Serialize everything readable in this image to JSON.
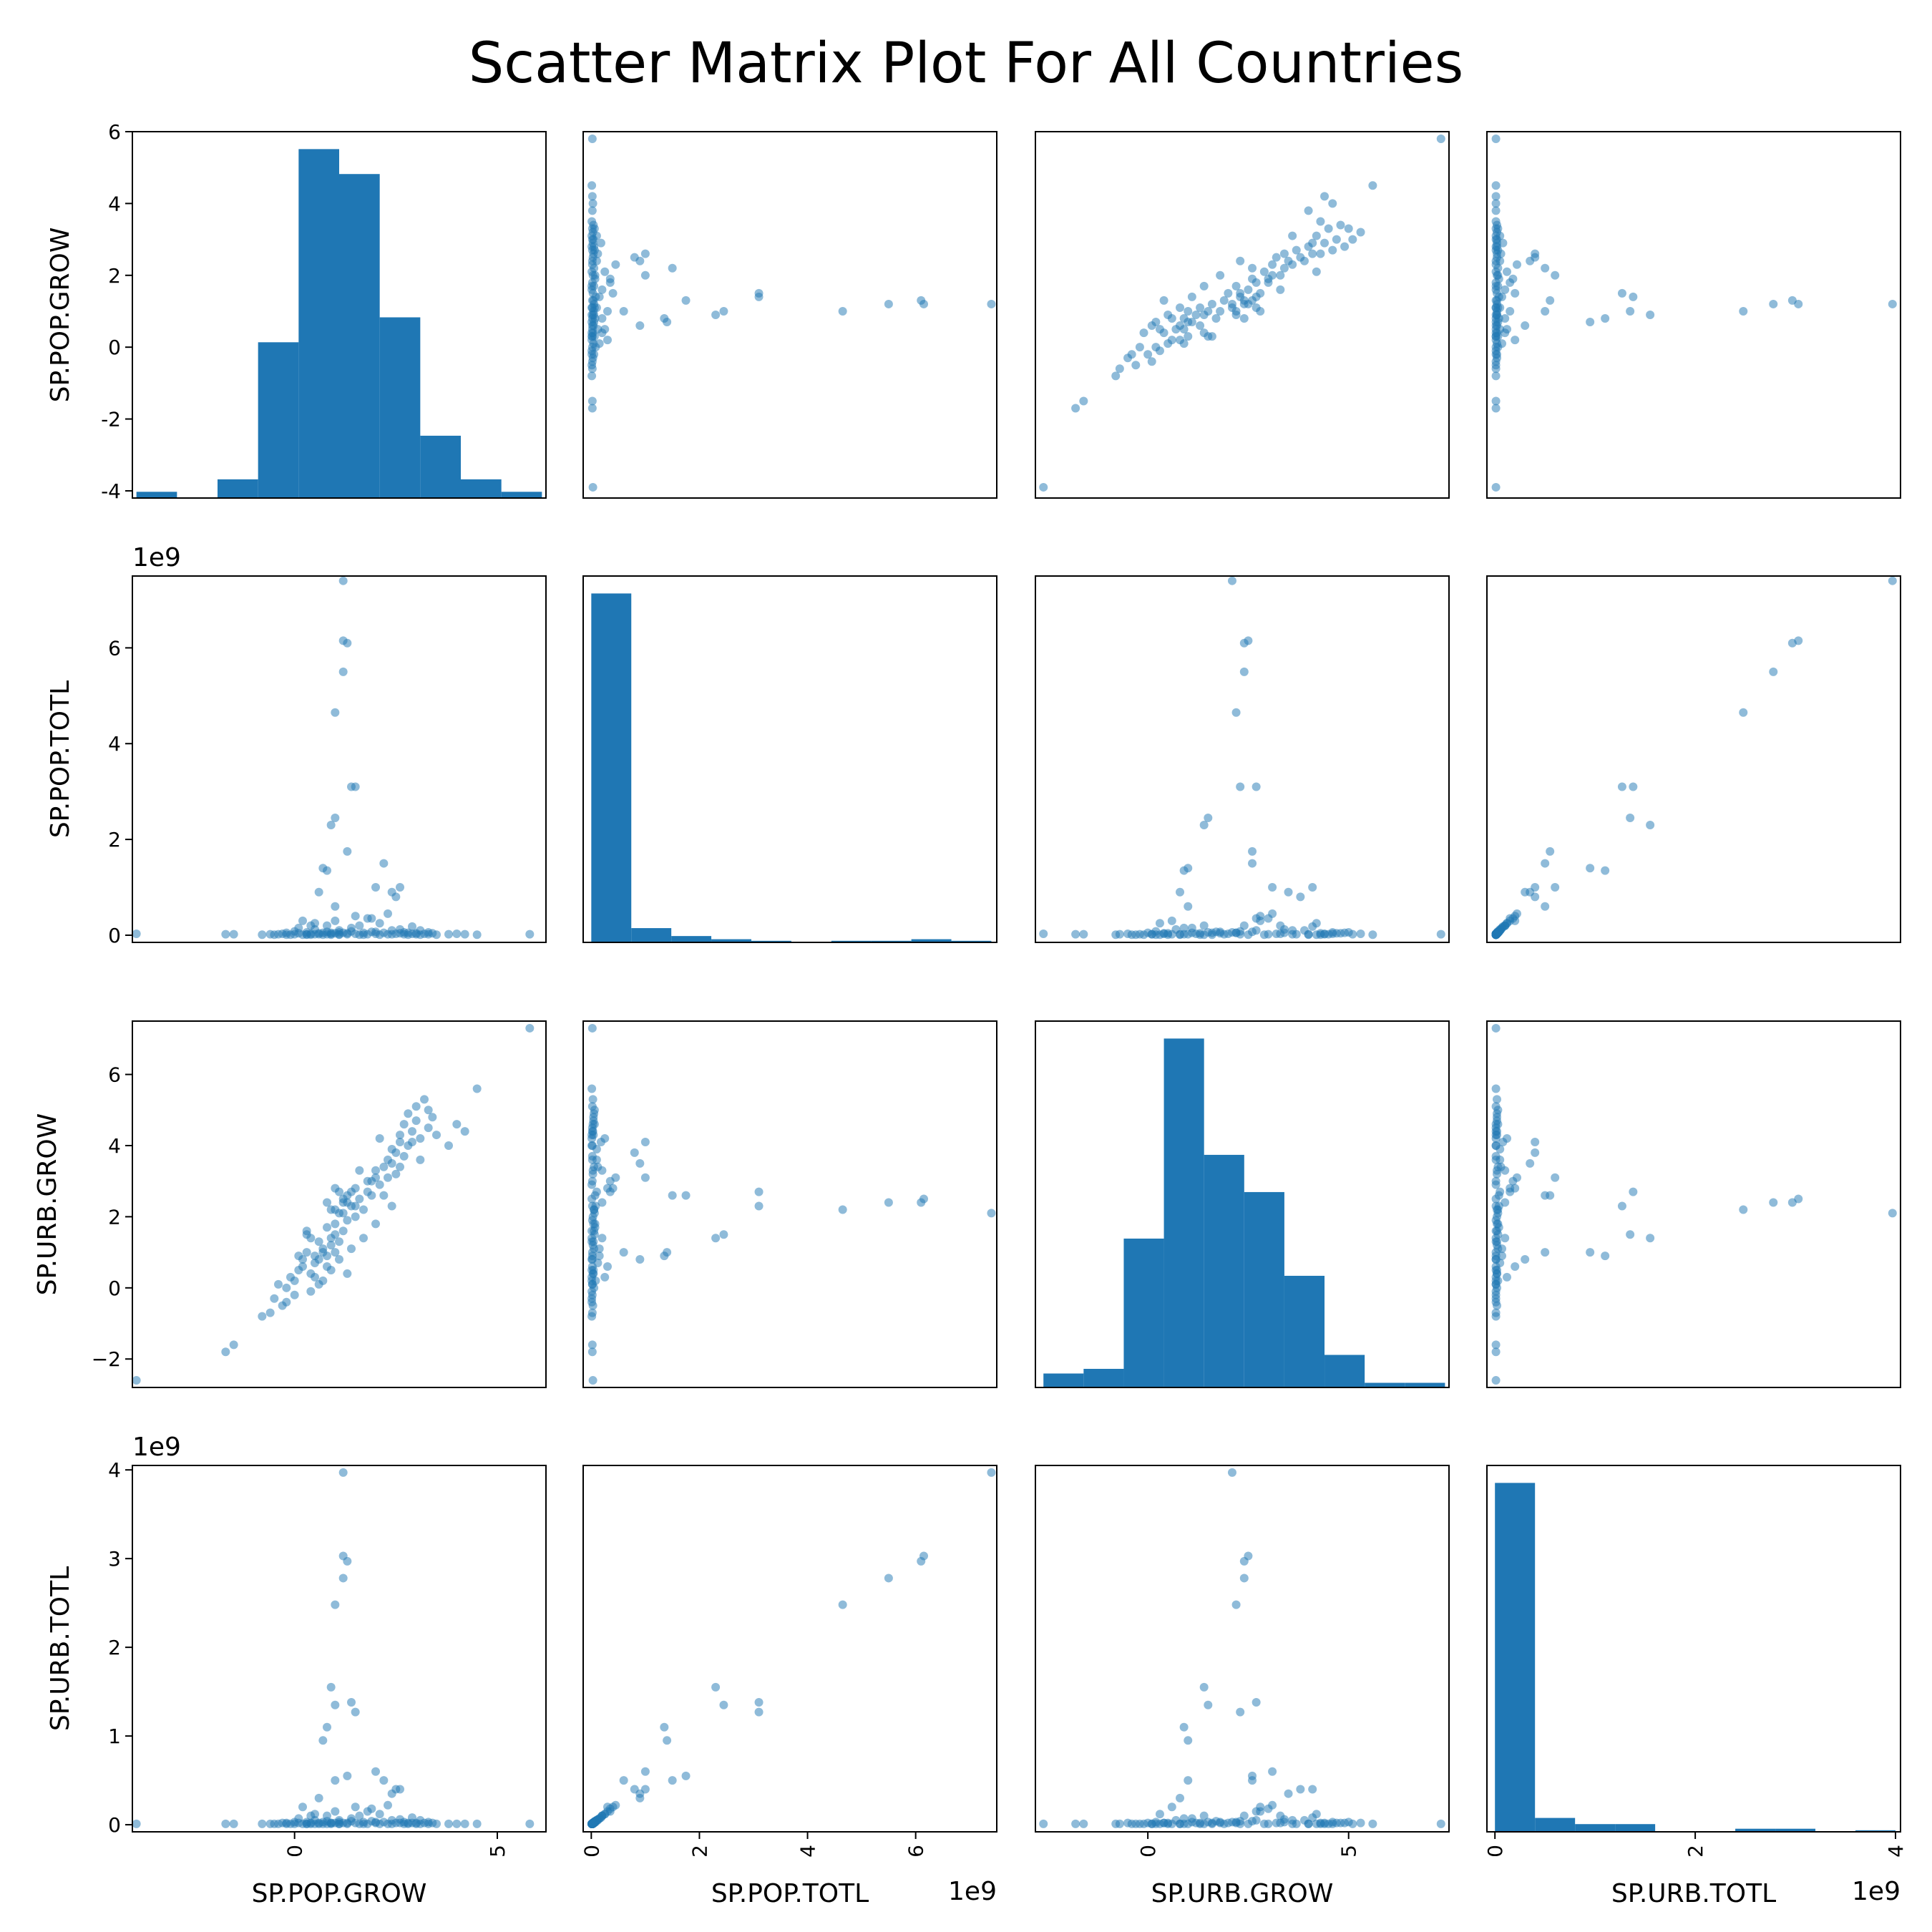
{
  "title": "Scatter Matrix Plot For All Countries",
  "colors": {
    "marker": "#1f77b4",
    "axes": "#000000",
    "background": "#ffffff"
  },
  "chart_data": {
    "type": "scatter",
    "variables": [
      "SP.POP.GROW",
      "SP.POP.TOTL",
      "SP.URB.GROW",
      "SP.URB.TOTL"
    ],
    "axes": [
      {
        "name": "SP.POP.GROW",
        "lim": [
          -4.2,
          6.0
        ],
        "row_ticks": [
          6,
          4,
          2,
          0,
          -2,
          -4
        ],
        "row_tick_labels": [
          "6",
          "4",
          "2",
          "0",
          "-2",
          "-4"
        ],
        "col_ticks": [
          0,
          5
        ],
        "col_tick_labels": [
          "0",
          "5"
        ],
        "col_lim": [
          -4.0,
          6.2
        ],
        "offset_text": ""
      },
      {
        "name": "SP.POP.TOTL",
        "lim": [
          -0.15,
          7.5
        ],
        "row_ticks": [
          6,
          4,
          2,
          0
        ],
        "row_tick_labels": [
          "6",
          "4",
          "2",
          "0"
        ],
        "col_ticks": [
          0,
          2,
          4,
          6
        ],
        "col_tick_labels": [
          "0",
          "2",
          "4",
          "6"
        ],
        "col_lim": [
          -0.15,
          7.5
        ],
        "offset_text": "1e9"
      },
      {
        "name": "SP.URB.GROW",
        "lim": [
          -2.8,
          7.5
        ],
        "row_ticks": [
          6,
          4,
          2,
          0,
          -2
        ],
        "row_tick_labels": [
          "6",
          "4",
          "2",
          "0",
          "−2"
        ],
        "col_ticks": [
          0,
          5
        ],
        "col_tick_labels": [
          "0",
          "5"
        ],
        "col_lim": [
          -2.8,
          7.5
        ],
        "offset_text": ""
      },
      {
        "name": "SP.URB.TOTL",
        "lim": [
          -0.08,
          4.05
        ],
        "row_ticks": [
          4,
          3,
          2,
          1,
          0
        ],
        "row_tick_labels": [
          "4",
          "3",
          "2",
          "1",
          "0"
        ],
        "col_ticks": [
          0,
          2,
          4
        ],
        "col_tick_labels": [
          "0",
          "2",
          "4"
        ],
        "col_lim": [
          -0.08,
          4.05
        ],
        "offset_text": "1e9"
      }
    ],
    "histograms": [
      {
        "variable": "SP.POP.GROW",
        "edges": [
          -3.9,
          -2.9,
          -1.9,
          -0.9,
          0.1,
          1.1,
          2.1,
          3.1,
          4.1,
          5.1,
          6.1
        ],
        "counts": [
          1,
          0,
          3,
          25,
          56,
          52,
          29,
          10,
          3,
          1
        ]
      },
      {
        "variable": "SP.POP.TOTL",
        "edges": [
          0.0,
          0.74,
          1.48,
          2.22,
          2.96,
          3.7,
          4.44,
          5.18,
          5.92,
          6.66,
          7.4
        ],
        "counts": [
          220,
          9,
          4,
          2,
          1,
          0,
          1,
          1,
          2,
          1
        ]
      },
      {
        "variable": "SP.URB.GROW",
        "edges": [
          -2.6,
          -1.6,
          -0.6,
          0.4,
          1.4,
          2.4,
          3.4,
          4.4,
          5.4,
          6.4,
          7.4
        ],
        "counts": [
          3,
          4,
          32,
          75,
          50,
          42,
          24,
          7,
          1,
          1
        ]
      },
      {
        "variable": "SP.URB.TOTL",
        "edges": [
          0.0,
          0.4,
          0.8,
          1.2,
          1.6,
          2.0,
          2.4,
          2.8,
          3.2,
          3.6,
          4.0
        ],
        "counts": [
          226,
          9,
          5,
          5,
          0,
          0,
          2,
          2,
          0,
          1
        ]
      }
    ],
    "points": [
      [
        -3.9,
        0.03,
        -2.6,
        0.01
      ],
      [
        -1.7,
        0.02,
        -1.8,
        0.01
      ],
      [
        -1.5,
        0.02,
        -1.6,
        0.01
      ],
      [
        -0.8,
        0.01,
        -0.8,
        0.01
      ],
      [
        -0.6,
        0.02,
        -0.7,
        0.01
      ],
      [
        -0.5,
        0.01,
        -0.3,
        0.01
      ],
      [
        -0.3,
        0.03,
        -0.5,
        0.02
      ],
      [
        -0.2,
        0.05,
        0.0,
        0.02
      ],
      [
        -0.1,
        0.01,
        0.3,
        0.01
      ],
      [
        0.0,
        0.02,
        -0.2,
        0.01
      ],
      [
        0.0,
        0.08,
        0.2,
        0.03
      ],
      [
        0.1,
        0.04,
        0.5,
        0.02
      ],
      [
        0.2,
        0.01,
        0.8,
        0.01
      ],
      [
        0.2,
        0.3,
        0.6,
        0.2
      ],
      [
        0.3,
        0.02,
        1.0,
        0.01
      ],
      [
        0.3,
        0.06,
        1.5,
        0.03
      ],
      [
        0.4,
        0.01,
        -0.1,
        0.01
      ],
      [
        0.4,
        0.03,
        0.4,
        0.02
      ],
      [
        0.5,
        0.02,
        0.9,
        0.01
      ],
      [
        0.5,
        0.12,
        0.7,
        0.05
      ],
      [
        0.6,
        0.04,
        1.3,
        0.02
      ],
      [
        0.6,
        0.9,
        0.8,
        0.3
      ],
      [
        0.7,
        0.01,
        0.2,
        0.01
      ],
      [
        0.7,
        0.05,
        1.1,
        0.03
      ],
      [
        0.7,
        1.4,
        1.0,
        0.95
      ],
      [
        0.8,
        0.02,
        0.6,
        0.01
      ],
      [
        0.8,
        0.07,
        1.7,
        0.04
      ],
      [
        0.8,
        1.35,
        0.9,
        1.1
      ],
      [
        0.9,
        0.03,
        1.2,
        0.02
      ],
      [
        0.9,
        0.01,
        0.5,
        0.01
      ],
      [
        0.9,
        2.3,
        1.4,
        1.55
      ],
      [
        1.0,
        0.04,
        1.8,
        0.02
      ],
      [
        1.0,
        2.45,
        1.5,
        1.35
      ],
      [
        1.0,
        0.6,
        1.0,
        0.5
      ],
      [
        1.0,
        4.65,
        2.2,
        2.48
      ],
      [
        1.1,
        0.02,
        0.8,
        0.01
      ],
      [
        1.1,
        0.06,
        2.1,
        0.03
      ],
      [
        1.1,
        0.01,
        1.3,
        0.01
      ],
      [
        1.2,
        5.5,
        2.4,
        2.78
      ],
      [
        1.2,
        6.15,
        2.5,
        3.03
      ],
      [
        1.2,
        7.4,
        2.1,
        3.97
      ],
      [
        1.2,
        0.05,
        1.6,
        0.02
      ],
      [
        1.3,
        6.1,
        2.4,
        2.97
      ],
      [
        1.3,
        1.75,
        2.6,
        0.55
      ],
      [
        1.3,
        0.02,
        1.9,
        0.01
      ],
      [
        1.4,
        3.1,
        2.7,
        1.38
      ],
      [
        1.4,
        0.08,
        2.3,
        0.04
      ],
      [
        1.5,
        3.1,
        2.3,
        1.27
      ],
      [
        1.5,
        0.03,
        2.0,
        0.02
      ],
      [
        1.5,
        0.4,
        2.8,
        0.2
      ],
      [
        1.6,
        0.01,
        2.5,
        0.01
      ],
      [
        1.7,
        0.05,
        2.2,
        0.03
      ],
      [
        1.8,
        0.02,
        3.0,
        0.01
      ],
      [
        1.8,
        0.35,
        2.7,
        0.15
      ],
      [
        1.9,
        0.07,
        2.6,
        0.04
      ],
      [
        2.0,
        0.03,
        3.3,
        0.02
      ],
      [
        2.0,
        1.0,
        3.1,
        0.6
      ],
      [
        2.1,
        0.01,
        2.9,
        0.01
      ],
      [
        2.2,
        1.5,
        2.6,
        0.5
      ],
      [
        2.2,
        0.05,
        3.4,
        0.03
      ],
      [
        2.3,
        0.02,
        3.6,
        0.01
      ],
      [
        2.4,
        0.9,
        3.5,
        0.35
      ],
      [
        2.4,
        0.1,
        3.9,
        0.05
      ],
      [
        2.5,
        0.03,
        3.2,
        0.02
      ],
      [
        2.5,
        0.8,
        3.8,
        0.4
      ],
      [
        2.6,
        1.0,
        4.1,
        0.4
      ],
      [
        2.6,
        0.04,
        4.3,
        0.02
      ],
      [
        2.7,
        0.02,
        3.7,
        0.01
      ],
      [
        2.7,
        0.06,
        4.6,
        0.03
      ],
      [
        2.8,
        0.01,
        4.0,
        0.01
      ],
      [
        2.8,
        0.05,
        4.9,
        0.02
      ],
      [
        2.9,
        0.03,
        4.4,
        0.02
      ],
      [
        3.0,
        0.02,
        5.1,
        0.01
      ],
      [
        3.0,
        0.04,
        4.7,
        0.02
      ],
      [
        3.1,
        0.01,
        4.2,
        0.01
      ],
      [
        3.2,
        0.03,
        5.3,
        0.02
      ],
      [
        3.3,
        0.02,
        4.5,
        0.01
      ],
      [
        3.4,
        0.04,
        4.8,
        0.02
      ],
      [
        3.5,
        0.01,
        4.3,
        0.01
      ],
      [
        3.8,
        0.02,
        4.0,
        0.01
      ],
      [
        4.0,
        0.03,
        4.6,
        0.01
      ],
      [
        4.2,
        0.02,
        4.4,
        0.01
      ],
      [
        4.5,
        0.01,
        5.6,
        0.01
      ],
      [
        5.8,
        0.02,
        7.3,
        0.01
      ],
      [
        -0.4,
        0.02,
        0.1,
        0.01
      ],
      [
        -0.2,
        0.01,
        -0.4,
        0.01
      ],
      [
        0.1,
        0.15,
        0.9,
        0.07
      ],
      [
        0.4,
        0.2,
        1.4,
        0.1
      ],
      [
        0.5,
        0.25,
        0.3,
        0.12
      ],
      [
        0.6,
        0.02,
        0.1,
        0.01
      ],
      [
        0.8,
        0.2,
        2.4,
        0.1
      ],
      [
        1.0,
        0.3,
        2.8,
        0.15
      ],
      [
        1.1,
        0.1,
        2.7,
        0.05
      ],
      [
        1.4,
        0.15,
        1.1,
        0.07
      ],
      [
        1.6,
        0.2,
        3.3,
        0.1
      ],
      [
        1.9,
        0.35,
        3.0,
        0.18
      ],
      [
        2.1,
        0.25,
        4.2,
        0.12
      ],
      [
        2.3,
        0.45,
        3.1,
        0.22
      ],
      [
        2.6,
        0.12,
        3.4,
        0.06
      ],
      [
        2.9,
        0.18,
        4.1,
        0.08
      ],
      [
        3.1,
        0.1,
        3.6,
        0.05
      ],
      [
        3.3,
        0.06,
        5.0,
        0.03
      ],
      [
        0.3,
        0.01,
        1.6,
        0.01
      ],
      [
        1.7,
        0.01,
        1.4,
        0.01
      ],
      [
        2.4,
        0.02,
        2.3,
        0.01
      ],
      [
        0.9,
        0.05,
        2.2,
        0.02
      ],
      [
        1.3,
        0.04,
        0.4,
        0.02
      ],
      [
        2.0,
        0.07,
        1.8,
        0.03
      ]
    ]
  }
}
